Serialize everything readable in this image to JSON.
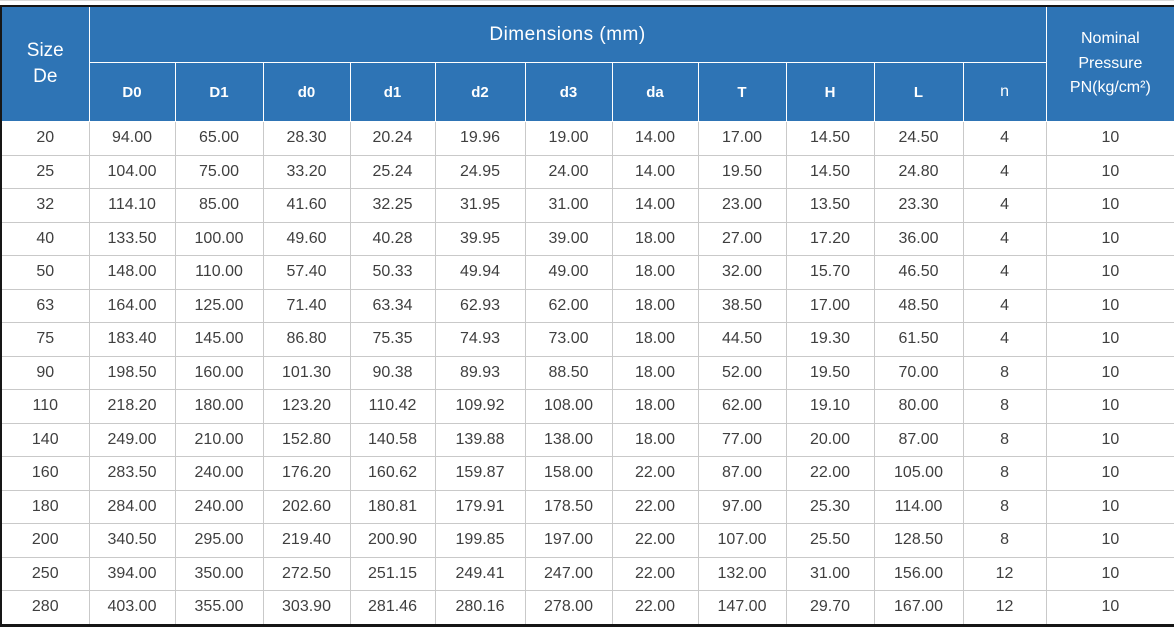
{
  "colors": {
    "header_bg": "#2E74B5",
    "grid_line": "#c9c9c9",
    "outer_border": "#161616",
    "data_text": "#3f3f3f"
  },
  "table": {
    "size_header": "Size\nDe",
    "dimensions_header": "Dimensions (mm)",
    "pressure_header": "Nominal\nPressure\nPN(kg/cm²)",
    "sub_headers": [
      "D0",
      "D1",
      "d0",
      "d1",
      "d2",
      "d3",
      "da",
      "T",
      "H",
      "L",
      "n"
    ],
    "rows": [
      [
        "20",
        "94.00",
        "65.00",
        "28.30",
        "20.24",
        "19.96",
        "19.00",
        "14.00",
        "17.00",
        "14.50",
        "24.50",
        "4",
        "10"
      ],
      [
        "25",
        "104.00",
        "75.00",
        "33.20",
        "25.24",
        "24.95",
        "24.00",
        "14.00",
        "19.50",
        "14.50",
        "24.80",
        "4",
        "10"
      ],
      [
        "32",
        "114.10",
        "85.00",
        "41.60",
        "32.25",
        "31.95",
        "31.00",
        "14.00",
        "23.00",
        "13.50",
        "23.30",
        "4",
        "10"
      ],
      [
        "40",
        "133.50",
        "100.00",
        "49.60",
        "40.28",
        "39.95",
        "39.00",
        "18.00",
        "27.00",
        "17.20",
        "36.00",
        "4",
        "10"
      ],
      [
        "50",
        "148.00",
        "110.00",
        "57.40",
        "50.33",
        "49.94",
        "49.00",
        "18.00",
        "32.00",
        "15.70",
        "46.50",
        "4",
        "10"
      ],
      [
        "63",
        "164.00",
        "125.00",
        "71.40",
        "63.34",
        "62.93",
        "62.00",
        "18.00",
        "38.50",
        "17.00",
        "48.50",
        "4",
        "10"
      ],
      [
        "75",
        "183.40",
        "145.00",
        "86.80",
        "75.35",
        "74.93",
        "73.00",
        "18.00",
        "44.50",
        "19.30",
        "61.50",
        "4",
        "10"
      ],
      [
        "90",
        "198.50",
        "160.00",
        "101.30",
        "90.38",
        "89.93",
        "88.50",
        "18.00",
        "52.00",
        "19.50",
        "70.00",
        "8",
        "10"
      ],
      [
        "110",
        "218.20",
        "180.00",
        "123.20",
        "110.42",
        "109.92",
        "108.00",
        "18.00",
        "62.00",
        "19.10",
        "80.00",
        "8",
        "10"
      ],
      [
        "140",
        "249.00",
        "210.00",
        "152.80",
        "140.58",
        "139.88",
        "138.00",
        "18.00",
        "77.00",
        "20.00",
        "87.00",
        "8",
        "10"
      ],
      [
        "160",
        "283.50",
        "240.00",
        "176.20",
        "160.62",
        "159.87",
        "158.00",
        "22.00",
        "87.00",
        "22.00",
        "105.00",
        "8",
        "10"
      ],
      [
        "180",
        "284.00",
        "240.00",
        "202.60",
        "180.81",
        "179.91",
        "178.50",
        "22.00",
        "97.00",
        "25.30",
        "114.00",
        "8",
        "10"
      ],
      [
        "200",
        "340.50",
        "295.00",
        "219.40",
        "200.90",
        "199.85",
        "197.00",
        "22.00",
        "107.00",
        "25.50",
        "128.50",
        "8",
        "10"
      ],
      [
        "250",
        "394.00",
        "350.00",
        "272.50",
        "251.15",
        "249.41",
        "247.00",
        "22.00",
        "132.00",
        "31.00",
        "156.00",
        "12",
        "10"
      ],
      [
        "280",
        "403.00",
        "355.00",
        "303.90",
        "281.46",
        "280.16",
        "278.00",
        "22.00",
        "147.00",
        "29.70",
        "167.00",
        "12",
        "10"
      ]
    ]
  }
}
